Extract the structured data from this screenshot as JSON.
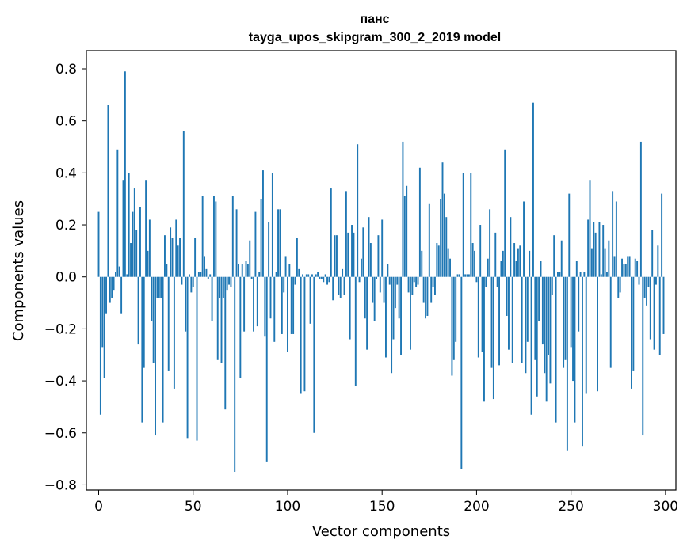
{
  "chart_data": {
    "type": "bar",
    "title_line1": "панс",
    "title_line2": "tayga_upos_skipgram_300_2_2019 model",
    "xlabel": "Vector components",
    "ylabel": "Components values",
    "xlim": [
      -6.5,
      305.5
    ],
    "ylim": [
      -0.82,
      0.87
    ],
    "xticks": [
      0,
      50,
      100,
      150,
      200,
      250,
      300
    ],
    "xtick_labels": [
      "0",
      "50",
      "100",
      "150",
      "200",
      "250",
      "300"
    ],
    "yticks": [
      -0.8,
      -0.6,
      -0.4,
      -0.2,
      0.0,
      0.2,
      0.4,
      0.6,
      0.8
    ],
    "ytick_labels": [
      "−0.8",
      "−0.6",
      "−0.4",
      "−0.2",
      "0.0",
      "0.2",
      "0.4",
      "0.6",
      "0.8"
    ],
    "color": "#1f77b4",
    "values": [
      0.25,
      -0.53,
      -0.27,
      -0.39,
      -0.14,
      0.66,
      -0.1,
      -0.08,
      -0.05,
      0.02,
      0.49,
      0.04,
      -0.14,
      0.37,
      0.79,
      0.01,
      0.4,
      0.13,
      0.25,
      0.34,
      0.18,
      -0.26,
      0.27,
      -0.56,
      -0.35,
      0.37,
      0.1,
      0.22,
      -0.17,
      -0.33,
      -0.61,
      -0.08,
      -0.08,
      -0.08,
      -0.56,
      0.16,
      0.05,
      -0.36,
      0.19,
      0.15,
      -0.43,
      0.22,
      0.12,
      0.15,
      -0.03,
      0.56,
      -0.21,
      -0.62,
      0.01,
      -0.06,
      -0.04,
      0.15,
      -0.63,
      0.02,
      0.02,
      0.31,
      0.08,
      0.03,
      -0.01,
      0.01,
      -0.17,
      0.31,
      0.29,
      -0.32,
      -0.08,
      -0.33,
      -0.08,
      -0.51,
      -0.05,
      -0.03,
      -0.04,
      0.31,
      -0.75,
      0.26,
      0.05,
      -0.39,
      0.05,
      -0.21,
      0.06,
      0.05,
      0.14,
      -0.01,
      -0.21,
      0.25,
      -0.19,
      0.02,
      0.3,
      0.41,
      -0.23,
      -0.71,
      0.21,
      -0.16,
      0.4,
      -0.25,
      0.02,
      0.26,
      0.26,
      -0.22,
      -0.06,
      0.08,
      -0.29,
      0.05,
      -0.22,
      -0.22,
      -0.03,
      0.15,
      0.03,
      -0.45,
      0.01,
      -0.44,
      0.01,
      0.01,
      -0.18,
      0.01,
      -0.6,
      0.01,
      0.02,
      -0.01,
      -0.01,
      -0.02,
      0.01,
      -0.03,
      -0.02,
      0.34,
      -0.09,
      0.16,
      0.16,
      -0.07,
      -0.08,
      0.03,
      -0.07,
      0.33,
      0.17,
      -0.24,
      0.2,
      0.17,
      -0.42,
      0.51,
      -0.02,
      0.07,
      0.19,
      -0.16,
      -0.28,
      0.23,
      0.13,
      -0.1,
      -0.17,
      -0.01,
      0.16,
      -0.06,
      0.22,
      -0.1,
      -0.31,
      0.05,
      -0.03,
      -0.37,
      -0.24,
      -0.12,
      -0.03,
      -0.16,
      -0.3,
      0.52,
      0.31,
      0.35,
      -0.06,
      -0.28,
      -0.07,
      -0.02,
      -0.04,
      -0.03,
      0.42,
      0.1,
      -0.1,
      -0.16,
      -0.15,
      0.28,
      -0.1,
      -0.04,
      -0.07,
      0.13,
      0.12,
      0.3,
      0.44,
      0.32,
      0.23,
      0.11,
      0.07,
      -0.38,
      -0.32,
      -0.25,
      0.01,
      0.01,
      -0.74,
      0.4,
      0.01,
      0.01,
      0.01,
      0.4,
      0.13,
      0.1,
      -0.02,
      -0.31,
      0.2,
      -0.29,
      -0.48,
      -0.04,
      0.07,
      0.26,
      -0.35,
      -0.47,
      0.17,
      -0.04,
      -0.34,
      0.06,
      0.1,
      0.49,
      -0.15,
      -0.28,
      0.23,
      -0.33,
      0.13,
      0.06,
      0.11,
      0.12,
      -0.33,
      0.29,
      -0.37,
      -0.25,
      0.1,
      -0.53,
      0.67,
      -0.32,
      -0.46,
      -0.17,
      0.06,
      -0.26,
      -0.37,
      -0.48,
      -0.3,
      -0.41,
      -0.07,
      0.16,
      -0.56,
      0.02,
      0.02,
      0.14,
      -0.35,
      -0.32,
      -0.67,
      0.32,
      -0.27,
      -0.4,
      -0.56,
      0.06,
      -0.21,
      0.02,
      -0.65,
      0.02,
      -0.45,
      0.22,
      0.37,
      0.11,
      0.21,
      0.17,
      -0.44,
      0.21,
      0.01,
      0.2,
      0.11,
      0.02,
      0.14,
      -0.35,
      0.33,
      0.08,
      0.29,
      -0.08,
      -0.06,
      0.07,
      0.05,
      0.05,
      0.08,
      0.08,
      -0.43,
      -0.36,
      0.07,
      0.06,
      -0.03,
      0.52,
      -0.61,
      -0.08,
      -0.11,
      -0.04,
      -0.24,
      0.18,
      -0.28,
      -0.03,
      0.12,
      -0.3,
      0.32,
      -0.22
    ]
  }
}
